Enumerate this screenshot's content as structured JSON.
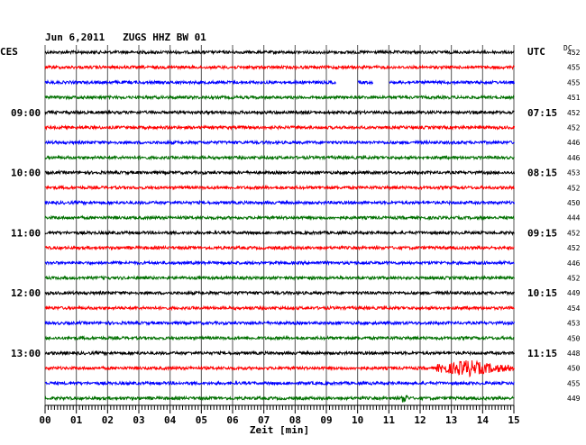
{
  "header": {
    "title": "Jun 6,2011   ZUGS HHZ BW 01",
    "left_tz": "CES",
    "right_tz": "UTC",
    "dc_label": "DC"
  },
  "chart_data": {
    "type": "line",
    "title": "Jun 6,2011   ZUGS HHZ BW 01",
    "xlabel": "Zeit [min]",
    "x_ticks": [
      "00",
      "01",
      "02",
      "03",
      "04",
      "05",
      "06",
      "07",
      "08",
      "09",
      "10",
      "11",
      "12",
      "13",
      "14",
      "15"
    ],
    "xlim": [
      0,
      15
    ],
    "trace_colors": [
      "#000000",
      "#ff0000",
      "#0000ff",
      "#007000"
    ],
    "left_hour_labels": [
      {
        "row": 4,
        "text": "09:00"
      },
      {
        "row": 8,
        "text": "10:00"
      },
      {
        "row": 12,
        "text": "11:00"
      },
      {
        "row": 16,
        "text": "12:00"
      },
      {
        "row": 20,
        "text": "13:00"
      }
    ],
    "right_hour_labels": [
      {
        "row": 4,
        "text": "07:15"
      },
      {
        "row": 8,
        "text": "08:15"
      },
      {
        "row": 12,
        "text": "09:15"
      },
      {
        "row": 16,
        "text": "10:15"
      },
      {
        "row": 20,
        "text": "11:15"
      }
    ],
    "dc_offsets": [
      452,
      455,
      455,
      451,
      452,
      452,
      446,
      446,
      453,
      452,
      450,
      444,
      452,
      452,
      446,
      452,
      449,
      454,
      453,
      450,
      448,
      450,
      455,
      449
    ],
    "events": [
      {
        "row": 2,
        "type": "gap",
        "from_min": 9.3,
        "to_min": 10.0
      },
      {
        "row": 2,
        "type": "gap",
        "from_min": 10.5,
        "to_min": 11.0
      },
      {
        "row": 21,
        "type": "burst",
        "from_min": 12.5,
        "to_min": 15.0,
        "peak_min": 13.5
      },
      {
        "row": 23,
        "type": "spike",
        "at_min": 11.5
      }
    ],
    "grid": true
  }
}
